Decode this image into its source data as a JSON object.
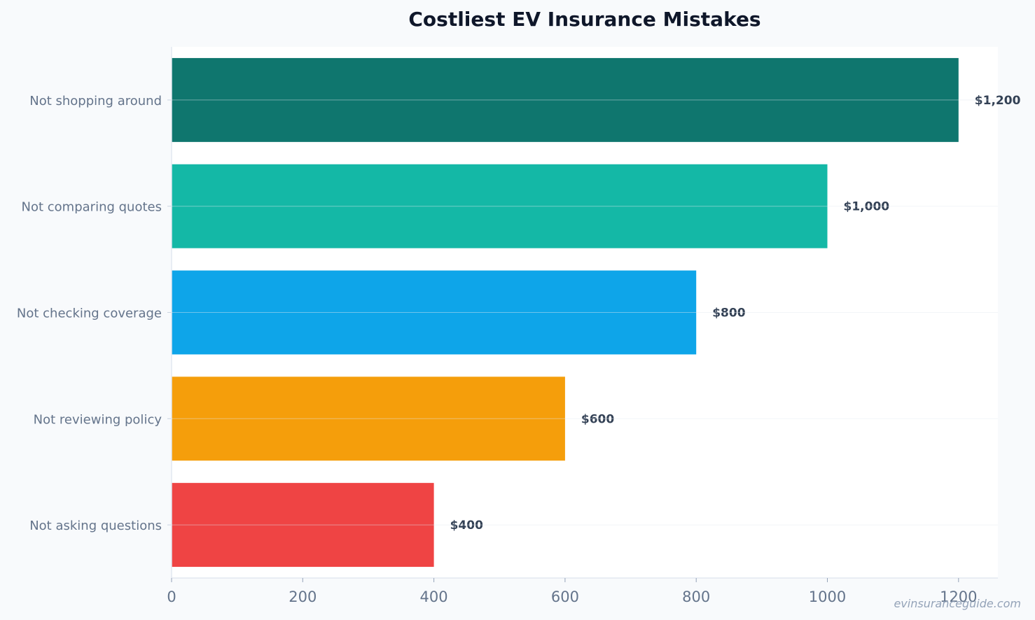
{
  "chart_data": {
    "type": "bar",
    "orientation": "horizontal",
    "title": "Costliest EV Insurance Mistakes",
    "categories": [
      "Not shopping around",
      "Not comparing quotes",
      "Not checking coverage",
      "Not reviewing policy",
      "Not asking questions"
    ],
    "values": [
      1200,
      1000,
      800,
      600,
      400
    ],
    "data_labels": [
      "$1,200",
      "$1,000",
      "$800",
      "$600",
      "$400"
    ],
    "colors": [
      "#0f766e",
      "#14b8a6",
      "#0ea5e9",
      "#f59e0b",
      "#ef4444"
    ],
    "xticks": [
      0,
      200,
      400,
      600,
      800,
      1000,
      1200
    ],
    "xlim": [
      0,
      1260
    ],
    "xlabel": "",
    "ylabel": "",
    "grid": "horizontal",
    "legend": "none"
  },
  "watermark": "evinsuranceguide.com"
}
